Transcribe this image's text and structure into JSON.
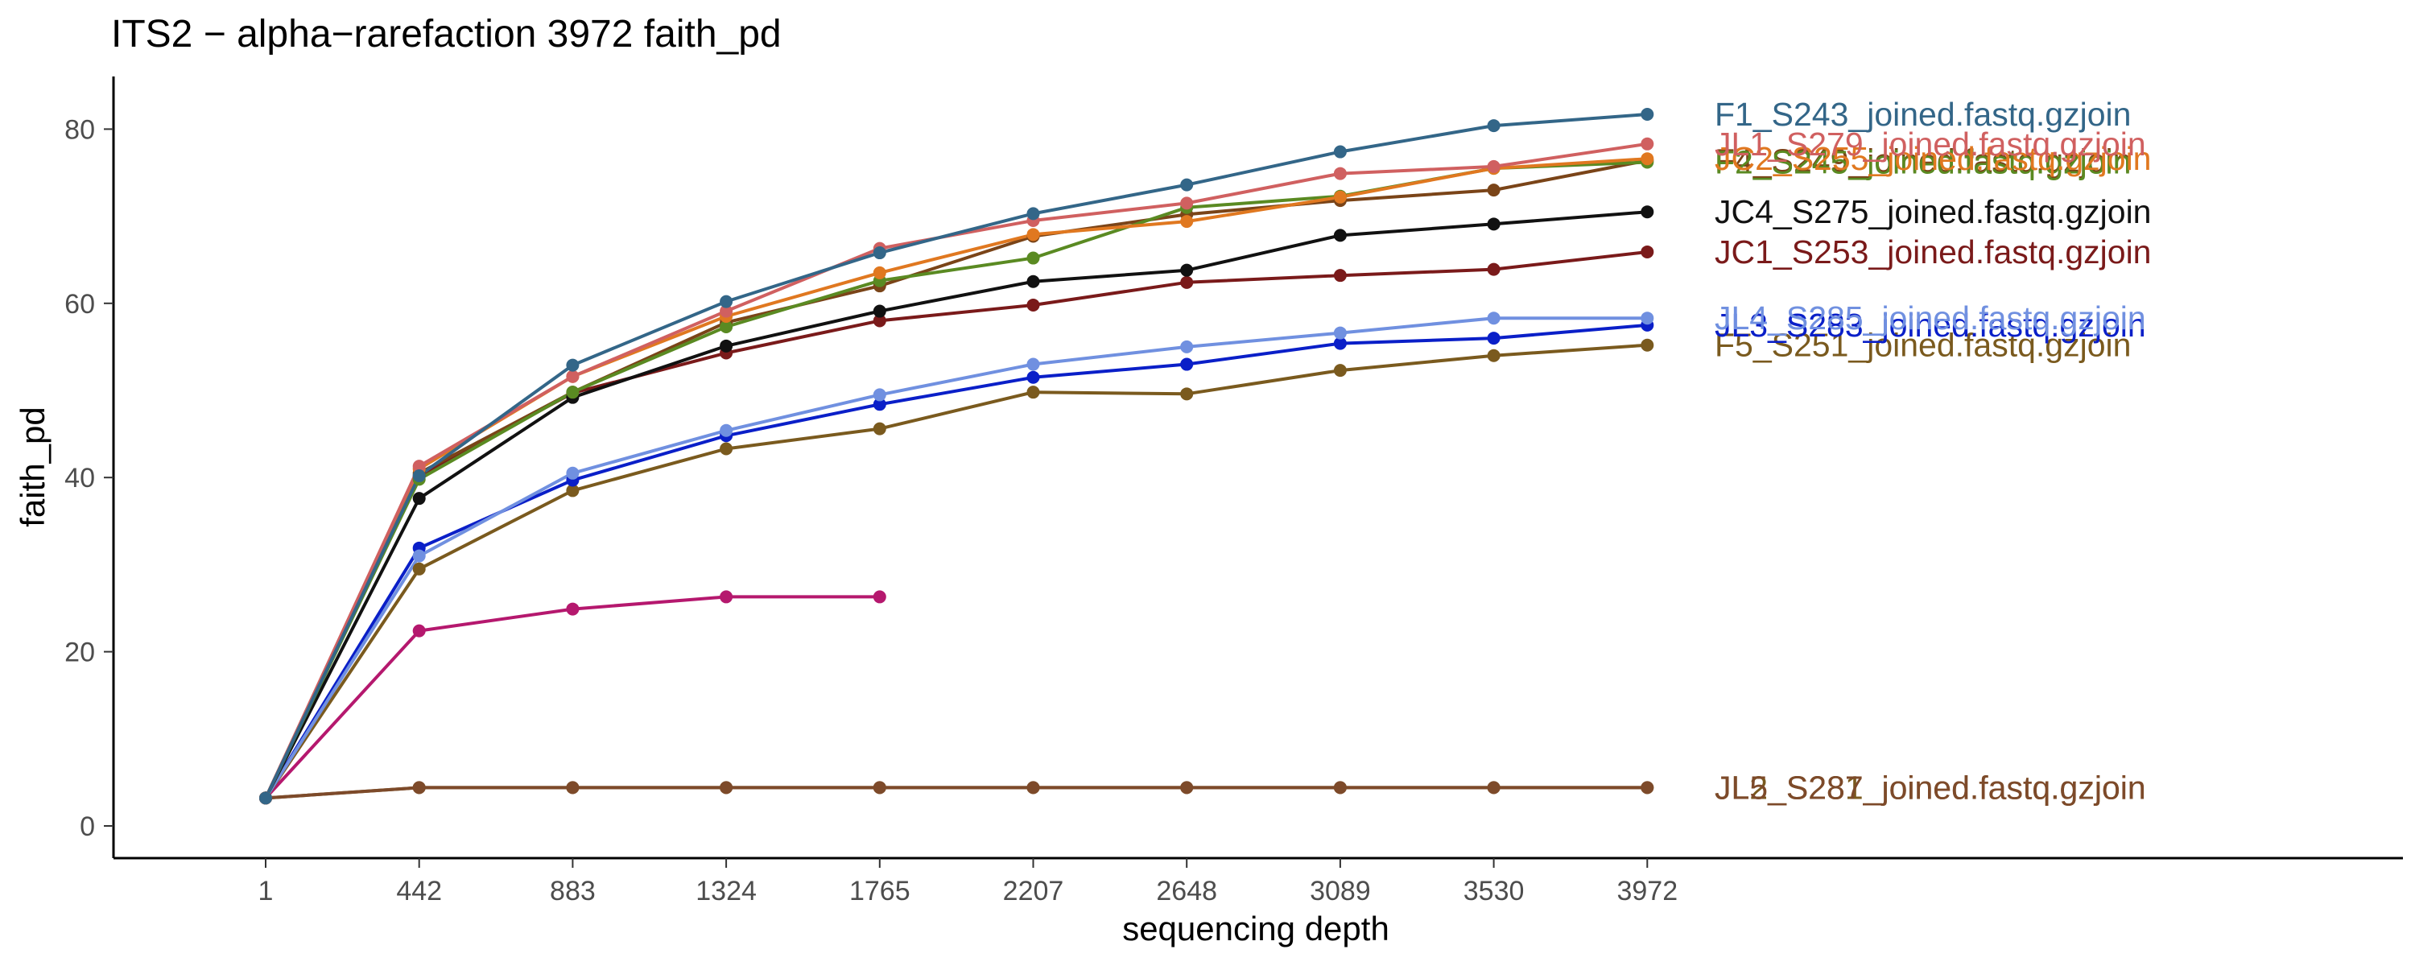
{
  "chart_data": {
    "type": "line",
    "title": "ITS2 − alpha−rarefaction 3972 faith_pd",
    "xlabel": "sequencing depth",
    "ylabel": "faith_pd",
    "x": [
      1,
      442,
      883,
      1324,
      1765,
      2207,
      2648,
      3089,
      3530,
      3972
    ],
    "x_tick_labels": [
      "1",
      "442",
      "883",
      "1324",
      "1765",
      "2207",
      "2648",
      "3089",
      "3530",
      "3972"
    ],
    "y_ticks": [
      0,
      20,
      40,
      60,
      80
    ],
    "y_tick_labels": [
      "0",
      "20",
      "40",
      "60",
      "80"
    ],
    "ylim": [
      -4,
      86
    ],
    "grid": false,
    "legend": "direct labels at the end of each line",
    "series": [
      {
        "name": "JL2_S281_joined.fastq.gzjoin",
        "color": "#7a5a1e",
        "values": [
          3.2,
          4.4,
          4.4,
          4.4,
          4.4,
          4.4,
          4.4,
          4.4,
          4.4,
          4.4
        ]
      },
      {
        "name": "JL5_S287_joined.fastq.gzjoin",
        "color": "#7d4a2a",
        "values": [
          3.2,
          4.4,
          4.4,
          4.4,
          4.4,
          4.4,
          4.4,
          4.4,
          4.4,
          4.4
        ]
      },
      {
        "name": "",
        "color": "#b5186e",
        "values": [
          3.2,
          22.4,
          24.9,
          26.3,
          26.3,
          null,
          null,
          null,
          null,
          null
        ]
      },
      {
        "name": "F5_S251_joined.fastq.gzjoin",
        "color": "#7a5a1e",
        "values": [
          3.2,
          29.5,
          38.5,
          43.3,
          45.6,
          49.8,
          49.6,
          52.3,
          54.0,
          55.2
        ]
      },
      {
        "name": "JL3_S283_joined.fastq.gzjoin",
        "color": "#0a1fc8",
        "values": [
          3.2,
          31.9,
          39.7,
          44.8,
          48.4,
          51.5,
          53.0,
          55.4,
          56.0,
          57.5
        ]
      },
      {
        "name": "JL4_S285_joined.fastq.gzjoin",
        "color": "#7090e0",
        "values": [
          3.2,
          31.0,
          40.5,
          45.4,
          49.5,
          53.0,
          55.0,
          56.6,
          58.3,
          58.3
        ]
      },
      {
        "name": "JC1_S253_joined.fastq.gzjoin",
        "color": "#7a1a1a",
        "values": [
          3.2,
          40.2,
          49.7,
          54.3,
          58.0,
          59.8,
          62.4,
          63.2,
          63.9,
          65.9
        ]
      },
      {
        "name": "JC4_S275_joined.fastq.gzjoin",
        "color": "#111111",
        "values": [
          3.2,
          37.6,
          49.2,
          55.1,
          59.1,
          62.5,
          63.8,
          67.8,
          69.1,
          70.5
        ]
      },
      {
        "name": "F4_S249_joined.fastq.gzjoin",
        "color": "#7a4418",
        "values": [
          3.2,
          40.5,
          49.8,
          57.8,
          62.0,
          67.7,
          70.2,
          71.8,
          73.0,
          76.4
        ]
      },
      {
        "name": "F2_S245_joined.fastq.gzjoin",
        "color": "#5a8a22",
        "values": [
          3.2,
          39.8,
          49.8,
          57.3,
          62.6,
          65.2,
          71.0,
          72.3,
          75.5,
          76.2
        ]
      },
      {
        "name": "JC2_S255_joined.fastq.gzjoin",
        "color": "#e07820",
        "values": [
          3.2,
          41.0,
          51.6,
          58.5,
          63.5,
          67.9,
          69.4,
          72.2,
          75.5,
          76.6
        ]
      },
      {
        "name": "JL1_S279_joined.fastq.gzjoin",
        "color": "#d06060",
        "values": [
          3.2,
          41.3,
          51.6,
          59.1,
          66.3,
          69.5,
          71.5,
          74.9,
          75.7,
          78.3
        ]
      },
      {
        "name": "F1_S243_joined.fastq.gzjoin",
        "color": "#336688",
        "values": [
          3.2,
          40.2,
          52.9,
          60.2,
          65.8,
          70.3,
          73.6,
          77.4,
          80.4,
          81.7
        ]
      }
    ]
  }
}
